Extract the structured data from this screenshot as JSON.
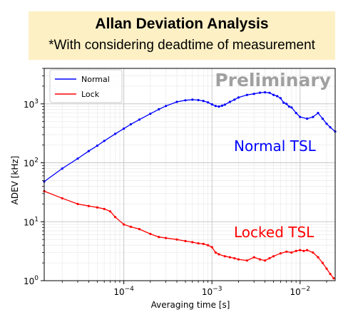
{
  "title": "Allan Deviation Analysis",
  "subtitle": "*With considering deadtime of measurement",
  "chart_data": {
    "type": "line",
    "xscale": "log",
    "yscale": "log",
    "xlim": [
      1.25e-05,
      0.025
    ],
    "ylim": [
      1,
      4000
    ],
    "xlabel": "Averaging time [s]",
    "ylabel": "ADEV [kHz]",
    "xticks": [
      {
        "value": 0.0001,
        "base": "10",
        "exp": "−4"
      },
      {
        "value": 0.001,
        "base": "10",
        "exp": "−3"
      },
      {
        "value": 0.01,
        "base": "10",
        "exp": "−2"
      }
    ],
    "yticks": [
      {
        "value": 1,
        "base": "10",
        "exp": "0"
      },
      {
        "value": 10,
        "base": "10",
        "exp": "1"
      },
      {
        "value": 100,
        "base": "10",
        "exp": "2"
      },
      {
        "value": 1000,
        "base": "10",
        "exp": "3"
      }
    ],
    "grid": true,
    "legend_position": "top-left",
    "annotations": [
      {
        "text": "Preliminary",
        "color": "#a0a0a0"
      },
      {
        "text": "Normal TSL",
        "color": "#0000ff"
      },
      {
        "text": "Locked TSL",
        "color": "#ff0000"
      }
    ],
    "series": [
      {
        "name": "Normal",
        "color": "#0000ff",
        "x": [
          1.25e-05,
          2e-05,
          3e-05,
          4e-05,
          5e-05,
          6e-05,
          8e-05,
          0.0001,
          0.00012,
          0.00015,
          0.0002,
          0.00025,
          0.0003,
          0.0004,
          0.0005,
          0.0006,
          0.0007,
          0.0008,
          0.0009,
          0.001,
          0.0011,
          0.0012,
          0.0013,
          0.0014,
          0.0016,
          0.0018,
          0.002,
          0.0025,
          0.003,
          0.0035,
          0.004,
          0.0045,
          0.005,
          0.0055,
          0.006,
          0.0065,
          0.007,
          0.0075,
          0.008,
          0.009,
          0.01,
          0.012,
          0.014,
          0.016,
          0.018,
          0.02,
          0.022,
          0.025
        ],
        "y": [
          48,
          80,
          118,
          158,
          195,
          235,
          310,
          380,
          450,
          540,
          680,
          810,
          920,
          1080,
          1150,
          1180,
          1160,
          1120,
          1060,
          980,
          920,
          900,
          930,
          970,
          1080,
          1180,
          1280,
          1420,
          1480,
          1550,
          1570,
          1540,
          1420,
          1350,
          1250,
          1050,
          1000,
          900,
          870,
          700,
          600,
          560,
          600,
          700,
          560,
          460,
          400,
          340
        ]
      },
      {
        "name": "Lock",
        "color": "#ff0000",
        "x": [
          1.25e-05,
          2e-05,
          3e-05,
          4e-05,
          5e-05,
          6e-05,
          7e-05,
          8e-05,
          0.0001,
          0.00012,
          0.00015,
          0.0002,
          0.00025,
          0.0003,
          0.0004,
          0.0005,
          0.0006,
          0.0007,
          0.0008,
          0.0009,
          0.001,
          0.0011,
          0.0012,
          0.0014,
          0.0016,
          0.0018,
          0.002,
          0.0025,
          0.003,
          0.0035,
          0.004,
          0.0045,
          0.005,
          0.006,
          0.007,
          0.008,
          0.009,
          0.01,
          0.011,
          0.012,
          0.014,
          0.016,
          0.018,
          0.02,
          0.022,
          0.024
        ],
        "y": [
          33,
          25,
          20,
          18.5,
          17.5,
          16.5,
          15,
          12,
          9,
          8.2,
          7.5,
          6.2,
          5.5,
          5.3,
          5.0,
          4.7,
          4.5,
          4.3,
          4.2,
          4.0,
          3.7,
          3.0,
          2.8,
          2.6,
          2.5,
          2.4,
          2.3,
          2.2,
          2.5,
          2.3,
          2.2,
          2.4,
          2.6,
          2.9,
          3.1,
          3.0,
          3.2,
          3.3,
          3.2,
          3.3,
          3.0,
          2.5,
          2.0,
          1.6,
          1.3,
          1.1
        ]
      }
    ]
  }
}
